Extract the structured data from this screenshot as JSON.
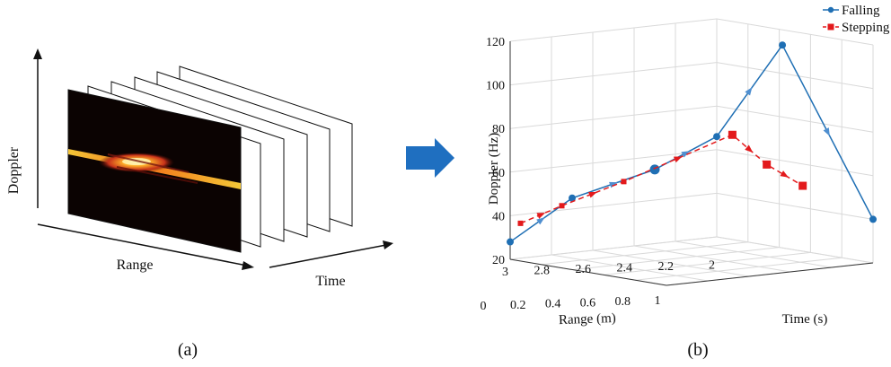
{
  "panel_a": {
    "y_axis_label": "Doppler",
    "x_axis_label": "Range",
    "z_axis_label": "Time",
    "caption": "(a)"
  },
  "arrow_color": "#1f6fc0",
  "chart_data": {
    "type": "line",
    "projection": "3d",
    "caption": "(b)",
    "xlabel": "Range (m)",
    "ylabel": "Doppler (Hz)",
    "zlabel": "Time (s)",
    "range_ticks": [
      "3",
      "2.8",
      "2.6",
      "2.4",
      "2.2",
      "2"
    ],
    "time_ticks": [
      "0",
      "0.2",
      "0.4",
      "0.6",
      "0.8",
      "1"
    ],
    "doppler_ticks": [
      "20",
      "40",
      "60",
      "80",
      "100",
      "120"
    ],
    "xlim": [
      2,
      3
    ],
    "zlim": [
      0,
      1
    ],
    "ylim": [
      20,
      120
    ],
    "grid": true,
    "legend_position": "top-right",
    "series": [
      {
        "name": "Falling",
        "color": "#1f6fb4",
        "marker": "circle",
        "line_style": "solid",
        "points": [
          {
            "x": 3.0,
            "time": 0.0,
            "doppler": 28
          },
          {
            "x": 2.7,
            "time": 0.0,
            "doppler": 45
          },
          {
            "x": 2.3,
            "time": 0.0,
            "doppler": 54
          },
          {
            "x": 2.0,
            "time": 0.0,
            "doppler": 66
          },
          {
            "x": 2.0,
            "time": 0.42,
            "doppler": 113
          },
          {
            "x": 2.0,
            "time": 1.0,
            "doppler": 40
          }
        ]
      },
      {
        "name": "Stepping",
        "color": "#e31a1c",
        "marker": "square",
        "line_style": "dashed",
        "points": [
          {
            "x": 2.95,
            "time": 0.0,
            "doppler": 36
          },
          {
            "x": 2.75,
            "time": 0.0,
            "doppler": 42
          },
          {
            "x": 2.45,
            "time": 0.0,
            "doppler": 50
          },
          {
            "x": 2.0,
            "time": 0.1,
            "doppler": 68
          },
          {
            "x": 2.0,
            "time": 0.32,
            "doppler": 57
          },
          {
            "x": 2.0,
            "time": 0.55,
            "doppler": 50
          }
        ]
      }
    ]
  }
}
